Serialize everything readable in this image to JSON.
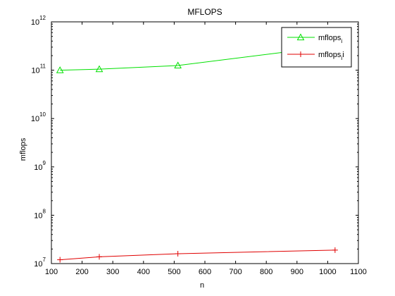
{
  "chart_data": {
    "type": "line",
    "title": "MFLOPS",
    "xlabel": "n",
    "ylabel": "mflops",
    "xlim": [
      100,
      1100
    ],
    "ylim": [
      10000000,
      1000000000000
    ],
    "yscale": "log",
    "xticks": [
      100,
      200,
      300,
      400,
      500,
      600,
      700,
      800,
      900,
      1000,
      1100
    ],
    "yticks": [
      {
        "value": 10000000,
        "base": "10",
        "exp": "7"
      },
      {
        "value": 100000000,
        "base": "10",
        "exp": "8"
      },
      {
        "value": 1000000000,
        "base": "10",
        "exp": "9"
      },
      {
        "value": 10000000000,
        "base": "10",
        "exp": "10"
      },
      {
        "value": 100000000000,
        "base": "10",
        "exp": "11"
      },
      {
        "value": 1000000000000,
        "base": "10",
        "exp": "12"
      }
    ],
    "grid": false,
    "legend_position": "top-right",
    "series": [
      {
        "name_base": "mflops",
        "name_sub": "i",
        "color": "#00e000",
        "marker": "triangle",
        "x": [
          128,
          256,
          512,
          1024
        ],
        "y": [
          100000000000,
          105000000000,
          125000000000,
          320000000000
        ]
      },
      {
        "name_base": "mflops",
        "name_sub": "i",
        "name_suffix": "i",
        "color": "#e00000",
        "marker": "plus",
        "x": [
          128,
          256,
          512,
          1024
        ],
        "y": [
          12000000,
          13800000,
          16000000,
          19000000
        ]
      }
    ]
  }
}
